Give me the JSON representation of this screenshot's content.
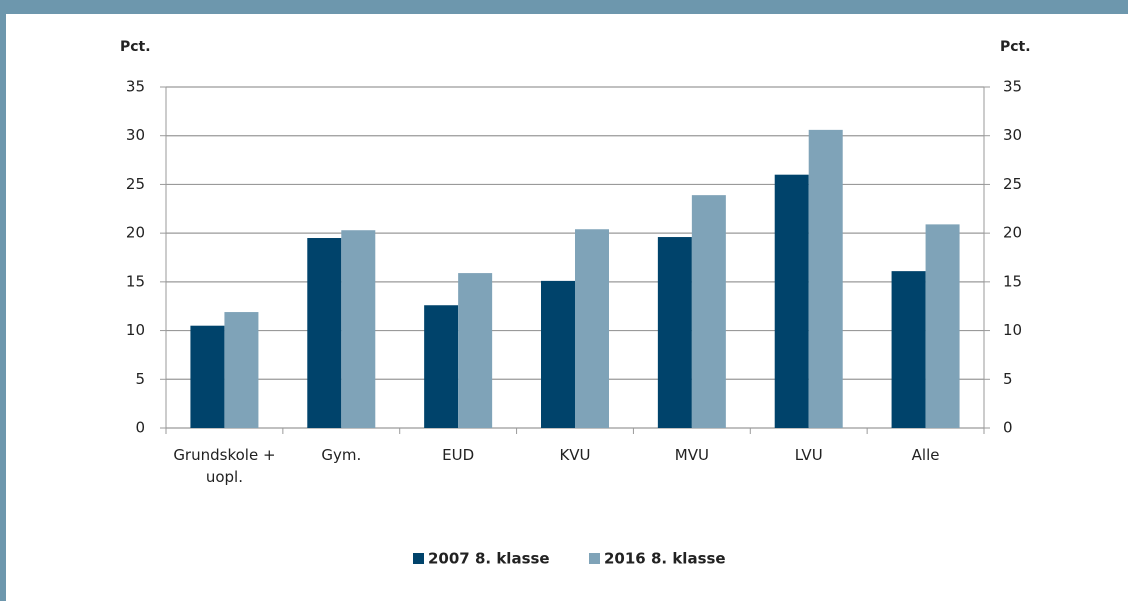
{
  "chart_data": {
    "type": "bar",
    "y_label": "Pct.",
    "y2_label": "Pct.",
    "categories": [
      "Grundskole + uopl.",
      "Gym.",
      "EUD",
      "KVU",
      "MVU",
      "LVU",
      "Alle"
    ],
    "series": [
      {
        "name": "2007 8. klasse",
        "color": "#00436b",
        "values": [
          10.5,
          19.5,
          12.6,
          15.1,
          19.6,
          26.0,
          16.1
        ]
      },
      {
        "name": "2016 8. klasse",
        "color": "#7fa3b8",
        "values": [
          11.9,
          20.3,
          15.9,
          20.4,
          23.9,
          30.6,
          20.9
        ]
      }
    ],
    "ylim": [
      0,
      35
    ],
    "yticks": [
      0,
      5,
      10,
      15,
      20,
      25,
      30,
      35
    ],
    "y2lim": [
      0,
      35
    ],
    "y2ticks": [
      0,
      5,
      10,
      15,
      20,
      25,
      30,
      35
    ],
    "grid": true,
    "legend": "bottom"
  }
}
